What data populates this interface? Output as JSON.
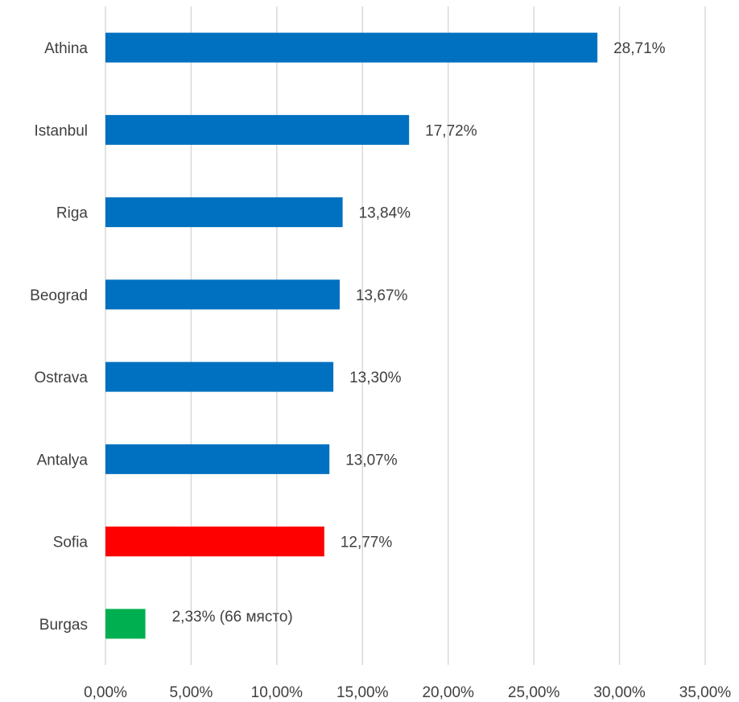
{
  "chart_data": {
    "type": "bar",
    "orientation": "horizontal",
    "categories": [
      "Athina",
      "Istanbul",
      "Riga",
      "Beograd",
      "Ostrava",
      "Antalya",
      "Sofia",
      "Burgas"
    ],
    "values": [
      28.71,
      17.72,
      13.84,
      13.67,
      13.3,
      13.07,
      12.77,
      2.33
    ],
    "data_labels": [
      "28,71%",
      "17,72%",
      "13,84%",
      "13,67%",
      "13,30%",
      "13,07%",
      "12,77%",
      "2,33% (66 място)"
    ],
    "colors": [
      "#0070C0",
      "#0070C0",
      "#0070C0",
      "#0070C0",
      "#0070C0",
      "#0070C0",
      "#FF0000",
      "#00B050"
    ],
    "xlim": [
      0,
      35
    ],
    "xticks": [
      0,
      5,
      10,
      15,
      20,
      25,
      30,
      35
    ],
    "xtick_labels": [
      "0,00%",
      "5,00%",
      "10,00%",
      "15,00%",
      "20,00%",
      "25,00%",
      "30,00%",
      "35,00%"
    ],
    "grid": true,
    "legend": "none",
    "title": "",
    "xlabel": "",
    "ylabel": ""
  }
}
